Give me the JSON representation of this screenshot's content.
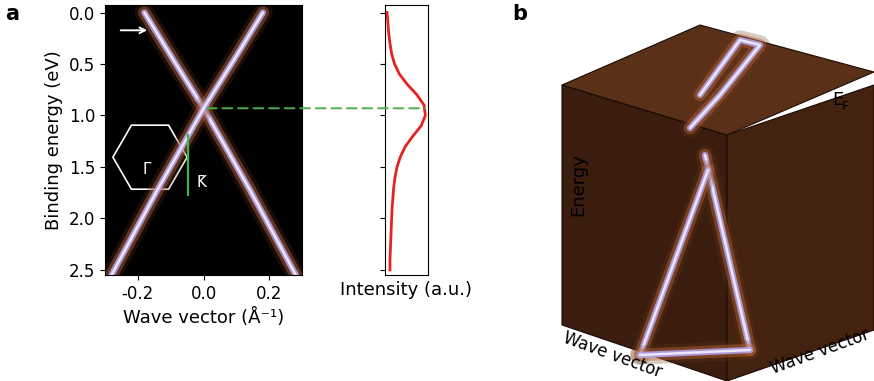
{
  "chart_data": [
    {
      "panel": "a",
      "type": "line",
      "xlabel": "Wave vector (Å⁻¹)",
      "ylabel": "Binding energy (eV)",
      "xlim": [
        -0.3,
        0.3
      ],
      "ylim": [
        2.55,
        -0.07
      ],
      "xticks": [
        -0.2,
        {
          "value": 0,
          "label": "0.0"
        },
        0.2
      ],
      "yticks": [
        {
          "value": 0,
          "label": "0.0"
        },
        0.5,
        {
          "value": 1,
          "label": "1.0"
        },
        1.5,
        {
          "value": 2,
          "label": "2.0"
        },
        2.5
      ],
      "inset_labels": [
        "Γ̄",
        "K̄"
      ],
      "dirac_point_energy": 0.93,
      "series": [
        {
          "color": "#b4a6f2",
          "x": [
            -0.18,
            -0.09,
            0,
            0.14,
            0.28
          ],
          "values": [
            0,
            0.47,
            0.93,
            1.72,
            2.55
          ]
        },
        {
          "color": "#b4a6f2",
          "x": [
            0.18,
            0.09,
            0,
            -0.14,
            -0.28
          ],
          "values": [
            0,
            0.47,
            0.93,
            1.72,
            2.55
          ]
        }
      ]
    },
    {
      "panel": "",
      "type": "line",
      "xlabel": "Intensity (a.u.)",
      "xlim": [
        0,
        1.05
      ],
      "ylim": [
        2.55,
        -0.07
      ],
      "xticks": [],
      "yticks": [
        0,
        0.5,
        1,
        1.5,
        2,
        2.5
      ],
      "tick_labels": false,
      "series": [
        {
          "color": "#e8221e",
          "energy": [
            0.0,
            0.1,
            0.2,
            0.3,
            0.4,
            0.5,
            0.6,
            0.7,
            0.8,
            0.9,
            1.0,
            1.1,
            1.2,
            1.3,
            1.4,
            1.5,
            1.6,
            1.7,
            1.8,
            1.9,
            2.0,
            2.1,
            2.2,
            2.3,
            2.4,
            2.5
          ],
          "intensity": [
            0.06,
            0.08,
            0.1,
            0.13,
            0.17,
            0.24,
            0.36,
            0.55,
            0.78,
            0.95,
            0.98,
            0.88,
            0.68,
            0.5,
            0.38,
            0.3,
            0.25,
            0.22,
            0.2,
            0.18,
            0.17,
            0.16,
            0.15,
            0.14,
            0.13,
            0.13
          ]
        }
      ]
    }
  ],
  "diagram": {
    "panel": "b",
    "vertical_label": "Energy",
    "left_label": "Wave vector",
    "right_label": "Wave vector",
    "top_label": {
      "main": "E",
      "subscript": "F"
    }
  }
}
